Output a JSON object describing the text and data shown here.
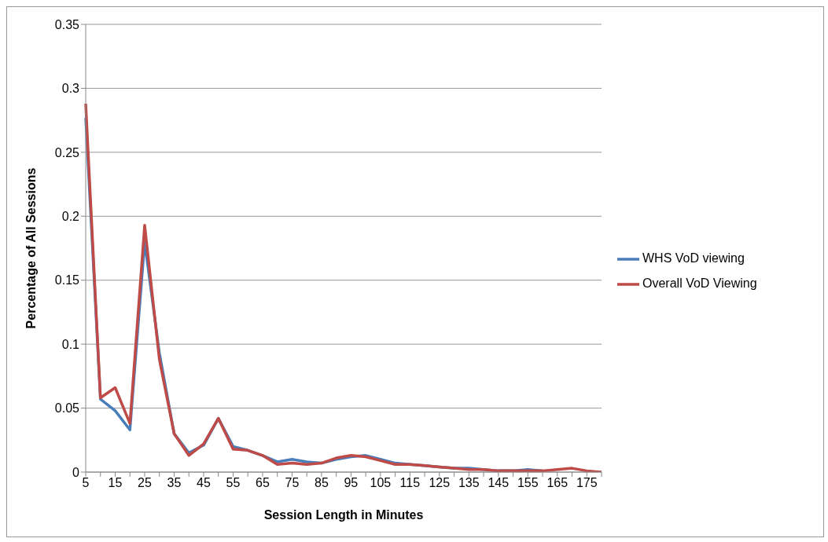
{
  "chart_data": {
    "type": "line",
    "xlabel": "Session Length in Minutes",
    "ylabel": "Percentage of All Sessions",
    "categories": [
      "5",
      null,
      "15",
      null,
      "25",
      null,
      "35",
      null,
      "45",
      null,
      "55",
      null,
      "65",
      null,
      "75",
      null,
      "85",
      null,
      "95",
      null,
      "105",
      null,
      "115",
      null,
      "125",
      null,
      "135",
      null,
      "145",
      null,
      "155",
      null,
      "165",
      null,
      "175",
      null
    ],
    "series": [
      {
        "name": "WHS VoD viewing",
        "color": "#4a7ebb",
        "values": [
          0.277,
          0.057,
          0.048,
          0.033,
          0.18,
          0.093,
          0.03,
          0.015,
          0.021,
          0.042,
          0.02,
          0.017,
          0.013,
          0.008,
          0.01,
          0.008,
          0.007,
          0.01,
          0.012,
          0.013,
          0.01,
          0.007,
          0.006,
          0.005,
          0.004,
          0.003,
          0.003,
          0.002,
          0.001,
          0.001,
          0.002,
          0.001,
          null,
          null,
          null,
          null
        ]
      },
      {
        "name": "Overall VoD Viewing",
        "color": "#be4b48",
        "values": [
          0.288,
          0.058,
          0.066,
          0.038,
          0.193,
          0.088,
          0.03,
          0.013,
          0.022,
          0.042,
          0.018,
          0.017,
          0.013,
          0.006,
          0.007,
          0.006,
          0.007,
          0.011,
          0.013,
          0.012,
          0.009,
          0.006,
          0.006,
          0.005,
          0.004,
          0.003,
          0.002,
          0.002,
          0.001,
          0.001,
          0.001,
          0.001,
          0.002,
          0.003,
          0.001,
          0.0
        ]
      }
    ],
    "ylim": [
      0,
      0.35
    ],
    "yticks": [
      0,
      0.05,
      0.1,
      0.15,
      0.2,
      0.25,
      0.3,
      0.35
    ],
    "grid": "y",
    "legend": "right",
    "marker": "none",
    "line_style": "solid"
  }
}
